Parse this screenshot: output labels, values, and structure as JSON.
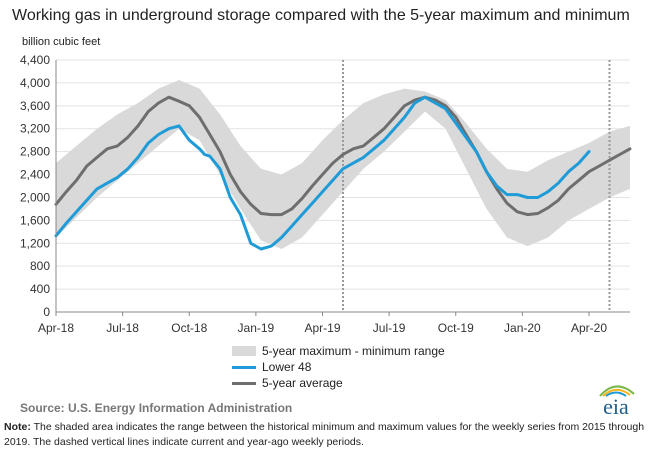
{
  "title": "Working gas in underground  storage compared with the 5-year maximum and minimum",
  "y_unit": "billion cubic feet",
  "source": "Source:  U.S. Energy Information Administration",
  "note_label": "Note:",
  "note_text": " The shaded area indicates the range between the historical minimum and maximum values for the weekly series from 2015 through 2019. The dashed vertical lines indicate current and year-ago weekly periods.",
  "logo_text": "eia",
  "colors": {
    "range": "#d9d9d9",
    "lower48": "#1f9bd7",
    "avg": "#6d6e70",
    "dashed": "#9a9a9a"
  },
  "chart_data": {
    "type": "area",
    "ylim": [
      0,
      4400
    ],
    "yticks": [
      "0",
      "400",
      "800",
      "1,200",
      "1,600",
      "2,000",
      "2,400",
      "2,800",
      "3,200",
      "3,600",
      "4,000",
      "4,400"
    ],
    "xticks": [
      "Apr-18",
      "Jul-18",
      "Oct-18",
      "Jan-19",
      "Apr-19",
      "Jul-19",
      "Oct-19",
      "Jan-20",
      "Apr-20"
    ],
    "grid": "horizontal",
    "legend_position": "bottom-center",
    "dashed_lines_at_weeks": [
      56,
      108
    ],
    "legend": [
      {
        "label": "5-year maximum - minimum range",
        "key": "range"
      },
      {
        "label": "Lower 48",
        "key": "lower48"
      },
      {
        "label": "5-year average",
        "key": "avg"
      }
    ],
    "x_week_start": "Apr-18",
    "range": {
      "weeks": [
        0,
        4,
        8,
        12,
        16,
        20,
        24,
        28,
        32,
        36,
        40,
        44,
        48,
        52,
        56,
        60,
        64,
        68,
        72,
        76,
        80,
        84,
        88,
        92,
        96,
        100,
        104,
        108,
        112
      ],
      "max": [
        2600,
        2900,
        3200,
        3450,
        3650,
        3900,
        4050,
        3900,
        3450,
        2900,
        2500,
        2400,
        2600,
        3000,
        3350,
        3650,
        3800,
        3900,
        3850,
        3700,
        3300,
        2850,
        2500,
        2450,
        2650,
        2800,
        2950,
        3150,
        3250
      ],
      "min": [
        1300,
        1650,
        2000,
        2300,
        2600,
        2900,
        3200,
        3000,
        2400,
        1800,
        1250,
        1100,
        1300,
        1700,
        2100,
        2500,
        2800,
        3150,
        3500,
        3200,
        2500,
        1800,
        1300,
        1150,
        1300,
        1600,
        1800,
        2000,
        2150
      ]
    },
    "series": [
      {
        "name": "Lower 48",
        "weeks": [
          0,
          2,
          4,
          6,
          8,
          10,
          12,
          14,
          16,
          18,
          20,
          22,
          24,
          26,
          28,
          29,
          30,
          32,
          34,
          36,
          38,
          40,
          42,
          44,
          46,
          48,
          50,
          52,
          54,
          56,
          58,
          60,
          62,
          64,
          66,
          68,
          70,
          72,
          74,
          76,
          78,
          80,
          82,
          84,
          86,
          88,
          90,
          92,
          94,
          96,
          98,
          100,
          102,
          104
        ],
        "values": [
          1330,
          1550,
          1750,
          1950,
          2150,
          2250,
          2350,
          2500,
          2700,
          2950,
          3100,
          3200,
          3250,
          3000,
          2850,
          2750,
          2720,
          2500,
          2000,
          1700,
          1200,
          1100,
          1150,
          1300,
          1500,
          1700,
          1900,
          2100,
          2300,
          2500,
          2600,
          2700,
          2850,
          3000,
          3200,
          3400,
          3650,
          3750,
          3650,
          3550,
          3300,
          3050,
          2800,
          2450,
          2200,
          2050,
          2050,
          2000,
          2000,
          2100,
          2250,
          2450,
          2600,
          2800
        ]
      },
      {
        "name": "5-year average",
        "weeks": [
          0,
          2,
          4,
          6,
          8,
          10,
          12,
          14,
          16,
          18,
          20,
          22,
          24,
          26,
          28,
          30,
          32,
          34,
          36,
          38,
          40,
          42,
          44,
          46,
          48,
          50,
          52,
          54,
          56,
          58,
          60,
          62,
          64,
          66,
          68,
          70,
          72,
          74,
          76,
          78,
          80,
          82,
          84,
          86,
          88,
          90,
          92,
          94,
          96,
          98,
          100,
          102,
          104,
          106,
          108,
          110,
          112
        ],
        "values": [
          1880,
          2100,
          2300,
          2550,
          2700,
          2850,
          2900,
          3050,
          3250,
          3500,
          3650,
          3750,
          3680,
          3600,
          3400,
          3100,
          2800,
          2400,
          2100,
          1880,
          1720,
          1700,
          1700,
          1800,
          1980,
          2200,
          2400,
          2600,
          2750,
          2850,
          2900,
          3050,
          3200,
          3400,
          3600,
          3700,
          3750,
          3700,
          3600,
          3400,
          3100,
          2800,
          2450,
          2150,
          1900,
          1750,
          1700,
          1720,
          1820,
          1950,
          2150,
          2300,
          2450,
          2550,
          2650,
          2750,
          2850
        ]
      }
    ]
  }
}
